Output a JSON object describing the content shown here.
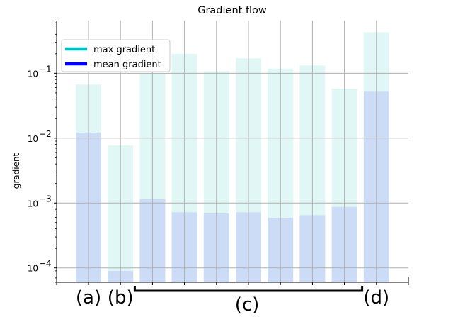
{
  "chart_data": {
    "type": "bar",
    "title": "Gradient flow",
    "xlabel": "",
    "ylabel": "gradient",
    "yscale": "log",
    "ylim": [
      6e-05,
      0.65
    ],
    "yticks": [
      {
        "value": 0.0001,
        "base": "10",
        "exp": "−4"
      },
      {
        "value": 0.001,
        "base": "10",
        "exp": "−3"
      },
      {
        "value": 0.01,
        "base": "10",
        "exp": "−2"
      },
      {
        "value": 0.1,
        "base": "10",
        "exp": "−1"
      }
    ],
    "grid": true,
    "legend_placement": "upper-left",
    "series": [
      {
        "name": "max gradient",
        "legend_color": "#00bfbf",
        "bar_color": "#e0f7f5",
        "values": [
          0.067,
          0.0077,
          0.1,
          0.2,
          0.108,
          0.17,
          0.118,
          0.132,
          0.058,
          0.43
        ]
      },
      {
        "name": "mean gradient",
        "legend_color": "#0000ff",
        "bar_color": "#ccdcf6",
        "values": [
          0.0122,
          9e-05,
          0.00115,
          0.00072,
          0.00069,
          0.00072,
          0.00059,
          0.00065,
          0.00087,
          0.052
        ]
      }
    ],
    "groups": [
      {
        "label": "(a)",
        "bars": [
          0
        ]
      },
      {
        "label": "(b)",
        "bars": [
          1
        ]
      },
      {
        "label": "(c)",
        "bars": [
          2,
          3,
          4,
          5,
          6,
          7,
          8
        ],
        "bracket": true
      },
      {
        "label": "(d)",
        "bars": [
          9
        ]
      }
    ]
  }
}
